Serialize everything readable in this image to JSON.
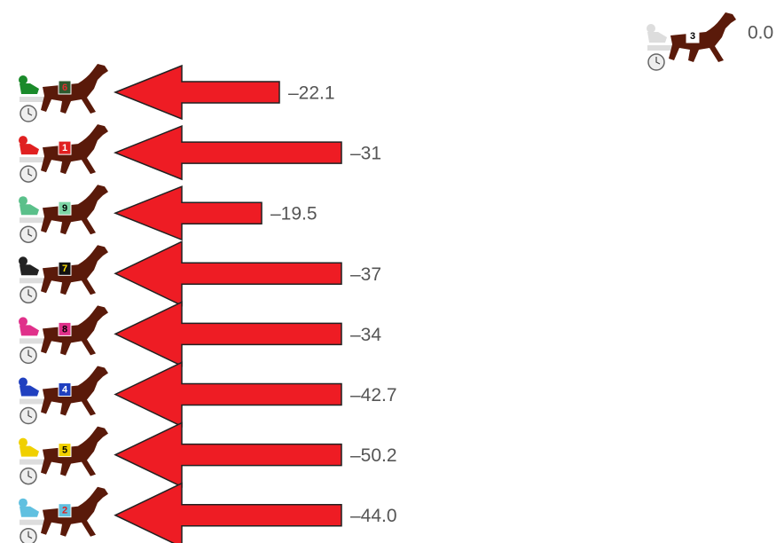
{
  "leader": {
    "number": "3",
    "value": "0.0"
  },
  "rows": [
    {
      "number": "6",
      "value": "–22.1"
    },
    {
      "number": "1",
      "value": "–31"
    },
    {
      "number": "9",
      "value": "–19.5"
    },
    {
      "number": "7",
      "value": "–37"
    },
    {
      "number": "8",
      "value": "–34"
    },
    {
      "number": "4",
      "value": "–42.7"
    },
    {
      "number": "5",
      "value": "–50.2"
    },
    {
      "number": "2",
      "value": "–44.0"
    }
  ]
}
